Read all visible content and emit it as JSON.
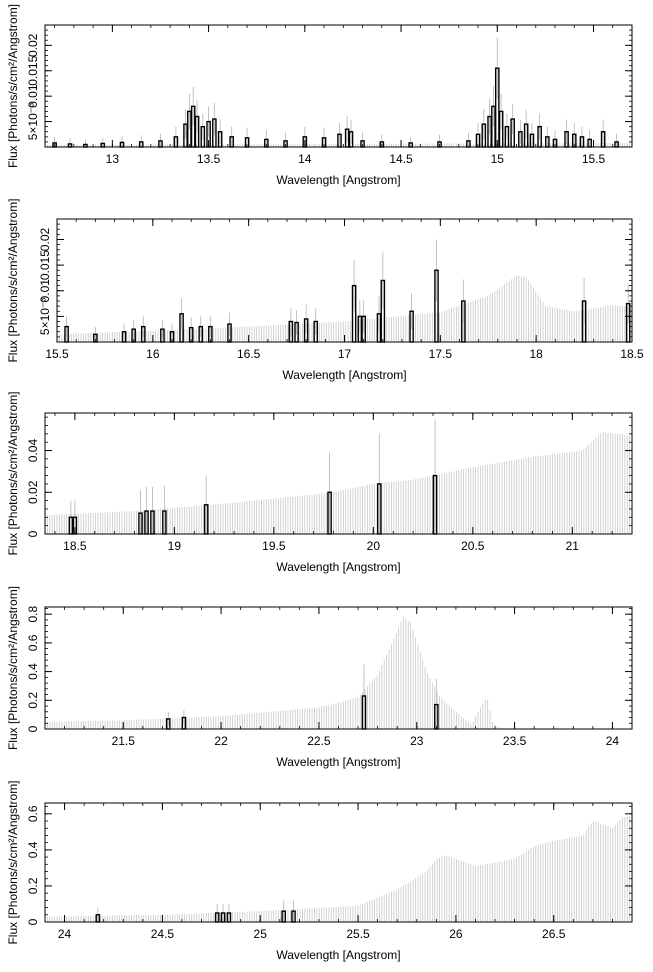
{
  "colors": {
    "model": "#c8c8c8",
    "data": "#000000",
    "error": "#b4b4b4",
    "axis": "#000000"
  },
  "chart_data": [
    {
      "type": "bar",
      "xlabel": "Wavelength [Angstrom]",
      "ylabel": "Flux [Photons/s/cm²/Angstrom]",
      "xlim": [
        12.65,
        15.7
      ],
      "ylim": [
        0,
        0.024
      ],
      "xticks": [
        13,
        13.5,
        14,
        14.5,
        15,
        15.5
      ],
      "xtick_labels": [
        "13",
        "13.5",
        "14",
        "14.5",
        "15",
        "15.5"
      ],
      "yticks": [
        0.005,
        0.01,
        0.015,
        0.02
      ],
      "ytick_labels": [
        "5×10⁻³",
        "0.01",
        "0.015",
        "0.02"
      ],
      "grid": false,
      "model_y": [
        [
          12.65,
          0.0004
        ],
        [
          15.7,
          0.0008
        ]
      ],
      "observed": {
        "x": [
          12.7,
          12.78,
          12.86,
          12.95,
          13.05,
          13.15,
          13.25,
          13.33,
          13.38,
          13.4,
          13.42,
          13.44,
          13.47,
          13.5,
          13.53,
          13.56,
          13.62,
          13.7,
          13.8,
          13.9,
          14.0,
          14.1,
          14.18,
          14.22,
          14.24,
          14.3,
          14.4,
          14.55,
          14.7,
          14.85,
          14.9,
          14.93,
          14.96,
          14.98,
          15.0,
          15.02,
          15.05,
          15.08,
          15.12,
          15.15,
          15.18,
          15.22,
          15.26,
          15.3,
          15.36,
          15.4,
          15.44,
          15.48,
          15.55,
          15.62
        ],
        "y": [
          0.0008,
          0.0006,
          0.0005,
          0.0007,
          0.0009,
          0.001,
          0.0012,
          0.002,
          0.0045,
          0.007,
          0.008,
          0.006,
          0.004,
          0.005,
          0.0055,
          0.003,
          0.002,
          0.0018,
          0.0015,
          0.0012,
          0.002,
          0.0018,
          0.0025,
          0.0035,
          0.003,
          0.0012,
          0.001,
          0.0008,
          0.001,
          0.0012,
          0.0025,
          0.0045,
          0.006,
          0.008,
          0.0155,
          0.007,
          0.004,
          0.0055,
          0.003,
          0.0045,
          0.0025,
          0.004,
          0.002,
          0.0015,
          0.003,
          0.0025,
          0.002,
          0.0015,
          0.003,
          0.001
        ],
        "err": [
          0.0012,
          0.001,
          0.001,
          0.0011,
          0.0012,
          0.0013,
          0.0014,
          0.002,
          0.0028,
          0.0035,
          0.0038,
          0.0032,
          0.0026,
          0.003,
          0.0032,
          0.0024,
          0.002,
          0.002,
          0.0018,
          0.0016,
          0.002,
          0.002,
          0.0022,
          0.0026,
          0.0024,
          0.0016,
          0.0014,
          0.0012,
          0.0014,
          0.0016,
          0.0022,
          0.003,
          0.0035,
          0.004,
          0.006,
          0.0035,
          0.0026,
          0.003,
          0.0024,
          0.0028,
          0.0022,
          0.0026,
          0.002,
          0.0018,
          0.0024,
          0.0022,
          0.002,
          0.0018,
          0.0024,
          0.0016
        ]
      }
    },
    {
      "type": "bar",
      "xlabel": "Wavelength [Angstrom]",
      "ylabel": "Flux [Photons/s/cm²/Angstrom]",
      "xlim": [
        15.5,
        18.5
      ],
      "ylim": [
        0,
        0.024
      ],
      "xticks": [
        15.5,
        16,
        16.5,
        17,
        17.5,
        18,
        18.5
      ],
      "xtick_labels": [
        "15.5",
        "16",
        "16.5",
        "17",
        "17.5",
        "18",
        "18.5"
      ],
      "yticks": [
        0.005,
        0.01,
        0.015,
        0.02
      ],
      "ytick_labels": [
        "5×10⁻³",
        "0.01",
        "0.015",
        "0.02"
      ],
      "grid": false,
      "model_y": [
        [
          15.5,
          0.0015
        ],
        [
          16.0,
          0.0022
        ],
        [
          16.5,
          0.003
        ],
        [
          17.0,
          0.004
        ],
        [
          17.5,
          0.0058
        ],
        [
          17.75,
          0.009
        ],
        [
          17.9,
          0.013
        ],
        [
          17.95,
          0.0125
        ],
        [
          18.05,
          0.007
        ],
        [
          18.2,
          0.006
        ],
        [
          18.4,
          0.0072
        ],
        [
          18.5,
          0.0068
        ]
      ],
      "observed": {
        "x": [
          15.55,
          15.7,
          15.85,
          15.9,
          15.95,
          16.05,
          16.1,
          16.15,
          16.2,
          16.25,
          16.3,
          16.4,
          16.72,
          16.75,
          16.8,
          16.85,
          17.05,
          17.08,
          17.1,
          17.18,
          17.2,
          17.35,
          17.48,
          17.62,
          18.25,
          18.48
        ],
        "y": [
          0.003,
          0.0015,
          0.002,
          0.0025,
          0.003,
          0.0025,
          0.002,
          0.0055,
          0.0028,
          0.003,
          0.003,
          0.0035,
          0.004,
          0.0038,
          0.0045,
          0.004,
          0.011,
          0.005,
          0.005,
          0.0055,
          0.012,
          0.006,
          0.014,
          0.008,
          0.008,
          0.0075
        ],
        "err": [
          0.002,
          0.0014,
          0.0016,
          0.0018,
          0.002,
          0.0018,
          0.0016,
          0.003,
          0.002,
          0.002,
          0.002,
          0.0022,
          0.0026,
          0.0024,
          0.0028,
          0.0026,
          0.005,
          0.0032,
          0.0032,
          0.0034,
          0.0055,
          0.0035,
          0.006,
          0.0042,
          0.0045,
          0.004
        ]
      }
    },
    {
      "type": "bar",
      "xlabel": "Wavelength [Angstrom]",
      "ylabel": "Flux [Photons/s/cm²/Angstrom]",
      "xlim": [
        18.35,
        21.3
      ],
      "ylim": [
        0,
        0.058
      ],
      "xticks": [
        18.5,
        19,
        19.5,
        20,
        20.5,
        21
      ],
      "xtick_labels": [
        "18.5",
        "19",
        "19.5",
        "20",
        "20.5",
        "21"
      ],
      "yticks": [
        0,
        0.02,
        0.04
      ],
      "ytick_labels": [
        "0",
        "0.02",
        "0.04"
      ],
      "grid": false,
      "model_y": [
        [
          18.35,
          0.009
        ],
        [
          18.8,
          0.011
        ],
        [
          19.3,
          0.015
        ],
        [
          19.8,
          0.02
        ],
        [
          20.0,
          0.024
        ],
        [
          20.2,
          0.026
        ],
        [
          20.5,
          0.032
        ],
        [
          20.8,
          0.037
        ],
        [
          21.05,
          0.04
        ],
        [
          21.15,
          0.049
        ],
        [
          21.3,
          0.047
        ]
      ],
      "observed": {
        "x": [
          18.48,
          18.5,
          18.83,
          18.86,
          18.89,
          18.95,
          19.16,
          19.78,
          20.03,
          20.31
        ],
        "y": [
          0.008,
          0.008,
          0.01,
          0.011,
          0.011,
          0.011,
          0.014,
          0.02,
          0.024,
          0.028
        ],
        "err": [
          0.008,
          0.008,
          0.011,
          0.0115,
          0.0115,
          0.012,
          0.014,
          0.019,
          0.024,
          0.027
        ]
      }
    },
    {
      "type": "bar",
      "xlabel": "Wavelength [Angstrom]",
      "ylabel": "Flux [Photons/s/cm²/Angstrom]",
      "xlim": [
        21.1,
        24.1
      ],
      "ylim": [
        0,
        0.85
      ],
      "xticks": [
        21.5,
        22,
        22.5,
        23,
        23.5,
        24
      ],
      "xtick_labels": [
        "21.5",
        "22",
        "22.5",
        "23",
        "23.5",
        "24"
      ],
      "yticks": [
        0,
        0.2,
        0.4,
        0.6,
        0.8
      ],
      "ytick_labels": [
        "0",
        "0.2",
        "0.4",
        "0.6",
        "0.8"
      ],
      "grid": false,
      "model_y": [
        [
          21.1,
          0.05
        ],
        [
          21.5,
          0.06
        ],
        [
          22.0,
          0.09
        ],
        [
          22.5,
          0.15
        ],
        [
          22.7,
          0.22
        ],
        [
          22.8,
          0.38
        ],
        [
          22.88,
          0.62
        ],
        [
          22.93,
          0.78
        ],
        [
          22.97,
          0.74
        ],
        [
          23.05,
          0.4
        ],
        [
          23.12,
          0.22
        ],
        [
          23.2,
          0.12
        ],
        [
          23.28,
          0.03
        ],
        [
          23.33,
          0.16
        ],
        [
          23.36,
          0.22
        ],
        [
          23.39,
          0.03
        ],
        [
          23.45,
          0.0
        ],
        [
          24.1,
          0.0
        ]
      ],
      "observed": {
        "x": [
          21.73,
          21.81,
          22.73,
          23.1
        ],
        "y": [
          0.07,
          0.08,
          0.23,
          0.17
        ],
        "err": [
          0.05,
          0.05,
          0.22,
          0.18
        ]
      }
    },
    {
      "type": "bar",
      "xlabel": "Wavelength [Angstrom]",
      "ylabel": "Flux [Photons/s/cm²/Angstrom]",
      "xlim": [
        23.9,
        26.9
      ],
      "ylim": [
        0,
        0.66
      ],
      "xticks": [
        24,
        24.5,
        25,
        25.5,
        26,
        26.5
      ],
      "xtick_labels": [
        "24",
        "24.5",
        "25",
        "25.5",
        "26",
        "26.5"
      ],
      "yticks": [
        0,
        0.2,
        0.4,
        0.6
      ],
      "ytick_labels": [
        "0",
        "0.2",
        "0.4",
        "0.6"
      ],
      "grid": false,
      "model_y": [
        [
          23.9,
          0.03
        ],
        [
          24.5,
          0.04
        ],
        [
          25.0,
          0.06
        ],
        [
          25.5,
          0.09
        ],
        [
          25.7,
          0.18
        ],
        [
          25.85,
          0.28
        ],
        [
          25.9,
          0.35
        ],
        [
          25.95,
          0.37
        ],
        [
          26.1,
          0.31
        ],
        [
          26.3,
          0.35
        ],
        [
          26.4,
          0.42
        ],
        [
          26.5,
          0.45
        ],
        [
          26.65,
          0.48
        ],
        [
          26.7,
          0.56
        ],
        [
          26.8,
          0.52
        ],
        [
          26.85,
          0.58
        ],
        [
          26.9,
          0.59
        ]
      ],
      "observed": {
        "x": [
          24.17,
          24.78,
          24.81,
          24.84,
          25.12,
          25.17
        ],
        "y": [
          0.04,
          0.05,
          0.05,
          0.05,
          0.06,
          0.06
        ],
        "err": [
          0.04,
          0.05,
          0.05,
          0.05,
          0.06,
          0.06
        ]
      }
    }
  ]
}
